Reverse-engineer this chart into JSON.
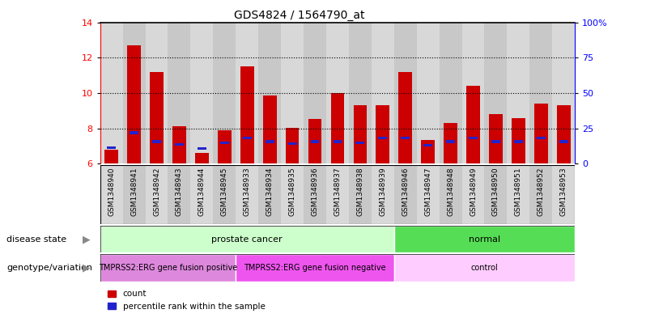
{
  "title": "GDS4824 / 1564790_at",
  "samples": [
    "GSM1348940",
    "GSM1348941",
    "GSM1348942",
    "GSM1348943",
    "GSM1348944",
    "GSM1348945",
    "GSM1348933",
    "GSM1348934",
    "GSM1348935",
    "GSM1348936",
    "GSM1348937",
    "GSM1348938",
    "GSM1348939",
    "GSM1348946",
    "GSM1348947",
    "GSM1348948",
    "GSM1348949",
    "GSM1348950",
    "GSM1348951",
    "GSM1348952",
    "GSM1348953"
  ],
  "count_values": [
    6.8,
    12.7,
    11.2,
    8.1,
    6.6,
    7.9,
    11.5,
    9.85,
    8.05,
    8.55,
    10.0,
    9.3,
    9.3,
    11.2,
    7.35,
    8.3,
    10.4,
    8.8,
    8.6,
    9.4,
    9.3
  ],
  "percentile_values": [
    6.9,
    7.75,
    7.25,
    7.1,
    6.85,
    7.2,
    7.45,
    7.25,
    7.15,
    7.25,
    7.25,
    7.2,
    7.45,
    7.45,
    7.05,
    7.25,
    7.45,
    7.25,
    7.25,
    7.45,
    7.25
  ],
  "bar_color": "#cc0000",
  "percentile_color": "#2222cc",
  "ylim_left": [
    6,
    14
  ],
  "ylim_right": [
    0,
    100
  ],
  "yticks_left": [
    6,
    8,
    10,
    12,
    14
  ],
  "yticks_right": [
    0,
    25,
    50,
    75,
    100
  ],
  "yticklabels_right": [
    "0",
    "25",
    "50",
    "75",
    "100%"
  ],
  "disease_state_groups": [
    {
      "label": "prostate cancer",
      "start": 0,
      "end": 13,
      "color": "#ccffcc"
    },
    {
      "label": "normal",
      "start": 13,
      "end": 21,
      "color": "#55dd55"
    }
  ],
  "genotype_groups": [
    {
      "label": "TMPRSS2:ERG gene fusion positive",
      "start": 0,
      "end": 6,
      "color": "#dd88dd"
    },
    {
      "label": "TMPRSS2:ERG gene fusion negative",
      "start": 6,
      "end": 13,
      "color": "#ee55ee"
    },
    {
      "label": "control",
      "start": 13,
      "end": 21,
      "color": "#ffccff"
    }
  ],
  "legend_count_label": "count",
  "legend_percentile_label": "percentile rank within the sample",
  "left_label_disease": "disease state",
  "left_label_genotype": "genotype/variation",
  "bar_width": 0.6,
  "background_color": "#ffffff",
  "col_colors": [
    "#d8d8d8",
    "#c8c8c8"
  ]
}
